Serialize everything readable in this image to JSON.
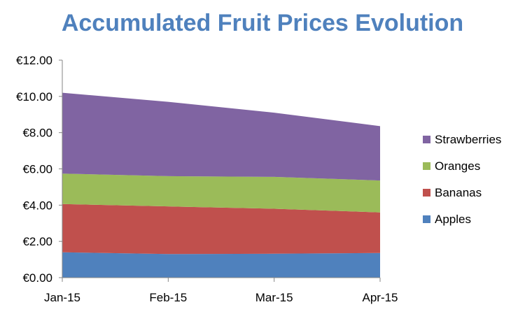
{
  "chart_data": {
    "type": "area",
    "stacked": true,
    "title": "Accumulated Fruit Prices Evolution",
    "categories": [
      "Jan-15",
      "Feb-15",
      "Mar-15",
      "Apr-15"
    ],
    "series": [
      {
        "name": "Apples",
        "values": [
          1.4,
          1.3,
          1.32,
          1.36
        ],
        "color": "#4F81BD"
      },
      {
        "name": "Bananas",
        "values": [
          2.66,
          2.63,
          2.48,
          2.24
        ],
        "color": "#C0504D"
      },
      {
        "name": "Oranges",
        "values": [
          1.68,
          1.67,
          1.76,
          1.76
        ],
        "color": "#9BBB59"
      },
      {
        "name": "Strawberries",
        "values": [
          4.46,
          4.1,
          3.54,
          3.0
        ],
        "color": "#8064A2"
      }
    ],
    "y_ticks": [
      "€0.00",
      "€2.00",
      "€4.00",
      "€6.00",
      "€8.00",
      "€10.00",
      "€12.00"
    ],
    "ylim": [
      0,
      12
    ],
    "y_step": 2,
    "grid": false,
    "legend_position": "right",
    "title_color": "#4F81BD",
    "axis_color": "#868686"
  }
}
